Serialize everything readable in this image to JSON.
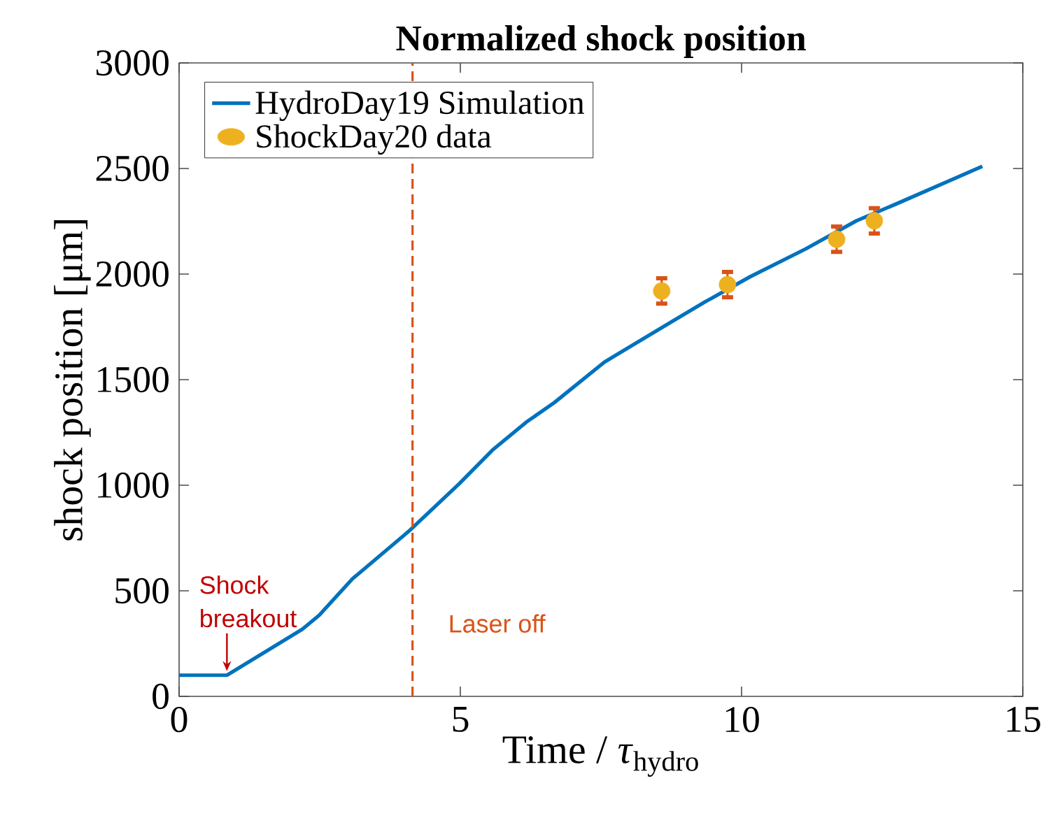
{
  "chart_data": {
    "type": "line",
    "title": "Normalized shock position",
    "xlabel": "Time / *τ*$_{hydro}$",
    "ylabel": "shock position [μm]",
    "xlim": [
      0,
      15
    ],
    "ylim": [
      0,
      3000
    ],
    "xticks": [
      0,
      5,
      10,
      15
    ],
    "yticks": [
      0,
      500,
      1000,
      1500,
      2000,
      2500,
      3000
    ],
    "legend": "top left",
    "series": [
      {
        "name": "HydroDay19 Simulation",
        "color": "#0072bd",
        "marker": "none",
        "x": [
          0,
          0.85,
          2.19,
          2.49,
          3.08,
          4.08,
          4.98,
          5.57,
          6.17,
          6.67,
          7.56,
          8.76,
          9.35,
          10.15,
          11.14,
          12.04,
          12.74,
          14.28
        ],
        "values": [
          100,
          100,
          318,
          384,
          556,
          781,
          1007,
          1166,
          1298,
          1391,
          1583,
          1775,
          1868,
          1987,
          2119,
          2252,
          2331,
          2510
        ]
      },
      {
        "name": "ShockDay20 data",
        "type": "scatter",
        "color": "#edb120",
        "marker": "circle",
        "x": [
          8.58,
          9.75,
          11.69,
          12.36
        ],
        "values": [
          1920,
          1950,
          2165,
          2252
        ],
        "errors": [
          60,
          60,
          60,
          60
        ]
      }
    ],
    "ref_lines": [
      {
        "axis": "x",
        "value": 4.15,
        "label": "Laser off",
        "color": "#d95319",
        "line_style": "dashed"
      }
    ],
    "annotations": [
      {
        "text": "Shock breakout",
        "x": 0.85,
        "y": 100
      }
    ]
  }
}
